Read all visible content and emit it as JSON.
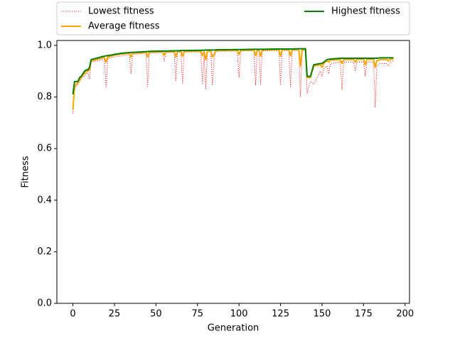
{
  "chart_data": {
    "type": "line",
    "xlabel": "Generation",
    "ylabel": "Fitness",
    "x": [
      0,
      1,
      2,
      3,
      4,
      5,
      6,
      7,
      8,
      9,
      10,
      11,
      14,
      18,
      19,
      20,
      21,
      25,
      30,
      34,
      35,
      36,
      44,
      45,
      46,
      54,
      55,
      56,
      61,
      62,
      63,
      65,
      66,
      67,
      77,
      78,
      79,
      80,
      81,
      83,
      84,
      85,
      86,
      99,
      100,
      101,
      109,
      110,
      111,
      112,
      113,
      114,
      124,
      125,
      126,
      130,
      131,
      132,
      136,
      137,
      138,
      140,
      141,
      142,
      143,
      145,
      149,
      150,
      151,
      153,
      154,
      155,
      161,
      162,
      163,
      169,
      170,
      171,
      175,
      176,
      177,
      181,
      182,
      183,
      185,
      189,
      190,
      191,
      193
    ],
    "series": [
      {
        "name": "Lowest fitness",
        "color": "red",
        "linestyle": "dotted",
        "linewidth": 1,
        "values": [
          0.735,
          0.83,
          0.84,
          0.85,
          0.86,
          0.87,
          0.88,
          0.88,
          0.89,
          0.895,
          0.87,
          0.935,
          0.94,
          0.945,
          0.945,
          0.835,
          0.95,
          0.955,
          0.96,
          0.965,
          0.89,
          0.965,
          0.97,
          0.84,
          0.97,
          0.972,
          0.94,
          0.972,
          0.973,
          0.865,
          0.973,
          0.974,
          0.85,
          0.974,
          0.975,
          0.85,
          0.96,
          0.83,
          0.975,
          0.976,
          0.845,
          0.95,
          0.977,
          0.978,
          0.875,
          0.978,
          0.979,
          0.845,
          0.979,
          0.979,
          0.85,
          0.979,
          0.98,
          0.85,
          0.98,
          0.98,
          0.84,
          0.98,
          0.98,
          0.8,
          0.98,
          0.98,
          0.815,
          0.84,
          0.86,
          0.85,
          0.9,
          0.88,
          0.91,
          0.92,
          0.89,
          0.93,
          0.935,
          0.83,
          0.935,
          0.935,
          0.9,
          0.935,
          0.935,
          0.88,
          0.935,
          0.935,
          0.76,
          0.92,
          0.93,
          0.93,
          0.92,
          0.935,
          0.94
        ]
      },
      {
        "name": "Average fitness",
        "color": "orange",
        "linestyle": "solid",
        "linewidth": 2,
        "values": [
          0.75,
          0.84,
          0.85,
          0.855,
          0.865,
          0.875,
          0.885,
          0.89,
          0.9,
          0.9,
          0.905,
          0.94,
          0.945,
          0.952,
          0.952,
          0.935,
          0.955,
          0.962,
          0.967,
          0.97,
          0.955,
          0.97,
          0.973,
          0.955,
          0.974,
          0.975,
          0.962,
          0.975,
          0.976,
          0.955,
          0.976,
          0.977,
          0.958,
          0.977,
          0.978,
          0.96,
          0.975,
          0.945,
          0.978,
          0.979,
          0.955,
          0.965,
          0.98,
          0.98,
          0.965,
          0.981,
          0.982,
          0.96,
          0.982,
          0.982,
          0.958,
          0.982,
          0.983,
          0.958,
          0.983,
          0.983,
          0.96,
          0.983,
          0.984,
          0.92,
          0.984,
          0.984,
          0.875,
          0.875,
          0.875,
          0.92,
          0.925,
          0.915,
          0.93,
          0.94,
          0.935,
          0.943,
          0.945,
          0.93,
          0.945,
          0.946,
          0.935,
          0.946,
          0.946,
          0.925,
          0.946,
          0.946,
          0.915,
          0.94,
          0.945,
          0.945,
          0.94,
          0.946,
          0.947
        ]
      },
      {
        "name": "Highest fitness",
        "color": "green",
        "linestyle": "solid",
        "linewidth": 2,
        "values": [
          0.81,
          0.86,
          0.86,
          0.86,
          0.875,
          0.88,
          0.89,
          0.9,
          0.905,
          0.905,
          0.915,
          0.945,
          0.95,
          0.957,
          0.958,
          0.96,
          0.96,
          0.965,
          0.97,
          0.972,
          0.973,
          0.973,
          0.976,
          0.976,
          0.977,
          0.978,
          0.978,
          0.978,
          0.979,
          0.979,
          0.979,
          0.98,
          0.98,
          0.98,
          0.981,
          0.981,
          0.981,
          0.982,
          0.982,
          0.982,
          0.982,
          0.982,
          0.983,
          0.984,
          0.984,
          0.984,
          0.985,
          0.985,
          0.985,
          0.985,
          0.985,
          0.985,
          0.986,
          0.986,
          0.986,
          0.986,
          0.986,
          0.986,
          0.987,
          0.987,
          0.987,
          0.987,
          0.88,
          0.88,
          0.88,
          0.925,
          0.93,
          0.93,
          0.935,
          0.945,
          0.946,
          0.947,
          0.95,
          0.95,
          0.95,
          0.95,
          0.95,
          0.95,
          0.95,
          0.95,
          0.95,
          0.95,
          0.95,
          0.95,
          0.952,
          0.952,
          0.952,
          0.952,
          0.952
        ]
      }
    ],
    "xlim": [
      -9.65,
      202.65
    ],
    "xticks": [
      0,
      25,
      50,
      75,
      100,
      125,
      150,
      175,
      200
    ],
    "ylim": [
      0,
      1.019
    ],
    "yticks": [
      {
        "value": 0,
        "label": "0.0"
      },
      0.2,
      0.4,
      0.6,
      0.8,
      {
        "value": 1,
        "label": "1.0"
      }
    ],
    "grid": false,
    "legend": "upper center outside",
    "legend_columns": 2
  }
}
